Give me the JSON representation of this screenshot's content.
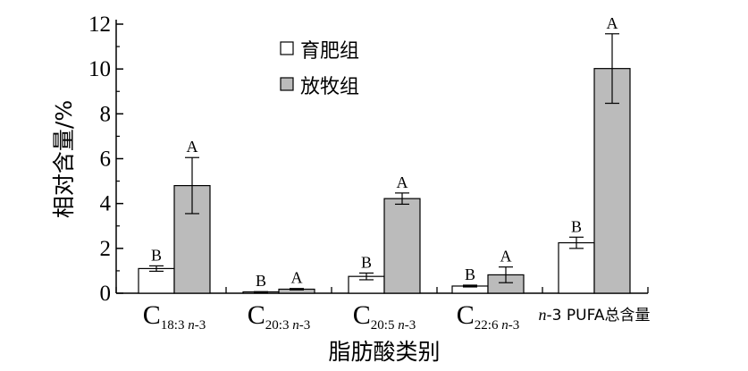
{
  "chart_data": {
    "type": "bar",
    "ylabel": "相对含量/%",
    "xlabel": "脂肪酸类别",
    "ylim": [
      0,
      12
    ],
    "yticks": [
      0,
      2,
      4,
      6,
      8,
      10,
      12
    ],
    "legend_position": "top-center",
    "categories": [
      {
        "base": "C",
        "sub": "18:3 ",
        "sub_italic": "n",
        "sub_tail": "-3"
      },
      {
        "base": "C",
        "sub": "20:3 ",
        "sub_italic": "n",
        "sub_tail": "-3"
      },
      {
        "base": "C",
        "sub": "20:5 ",
        "sub_italic": "n",
        "sub_tail": "-3"
      },
      {
        "base": "C",
        "sub": "22:6 ",
        "sub_italic": "n",
        "sub_tail": "-3"
      },
      {
        "prefix_italic": "n",
        "text": "-3 PUFA总含量"
      }
    ],
    "series": [
      {
        "name": "育肥组",
        "color": "#ffffff",
        "values": [
          1.1,
          0.05,
          0.75,
          0.32,
          2.25
        ],
        "errors": [
          0.12,
          0.02,
          0.15,
          0.04,
          0.25
        ],
        "labels": [
          "B",
          "B",
          "B",
          "B",
          "B"
        ]
      },
      {
        "name": "放牧组",
        "color": "#bbbbbb",
        "values": [
          4.8,
          0.18,
          4.22,
          0.82,
          10.02
        ],
        "errors": [
          1.25,
          0.03,
          0.25,
          0.35,
          1.55
        ],
        "labels": [
          "A",
          "A",
          "A",
          "A",
          "A"
        ]
      }
    ]
  }
}
